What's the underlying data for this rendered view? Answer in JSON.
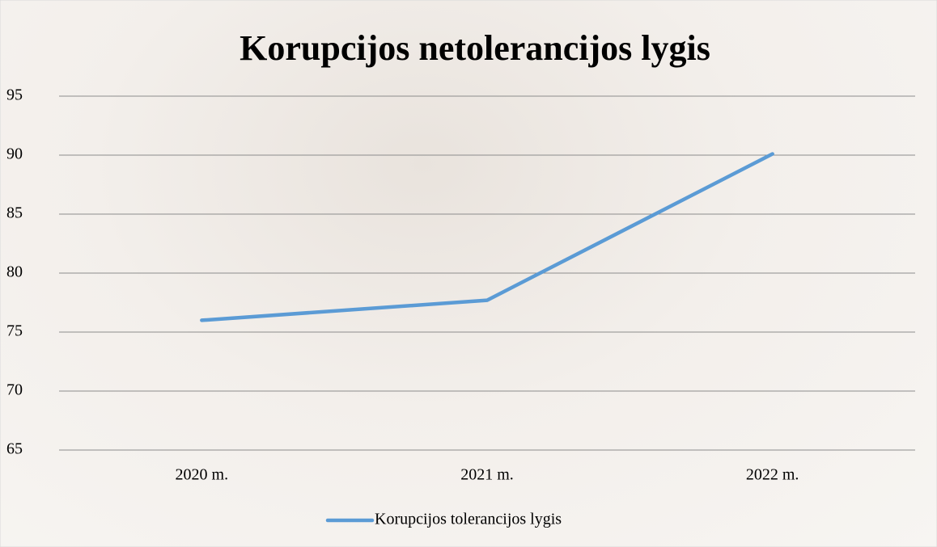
{
  "chart_data": {
    "type": "line",
    "title": "Korupcijos netolerancijos lygis",
    "categories": [
      "2020 m.",
      "2021 m.",
      "2022 m."
    ],
    "series": [
      {
        "name": "Korupcijos tolerancijos lygis",
        "color": "#5b9bd5",
        "values": [
          76,
          77.7,
          90.1
        ]
      }
    ],
    "ylim": [
      65,
      95
    ],
    "yticks": [
      65,
      70,
      75,
      80,
      85,
      90,
      95
    ],
    "grid": true,
    "legend": "bottom"
  }
}
